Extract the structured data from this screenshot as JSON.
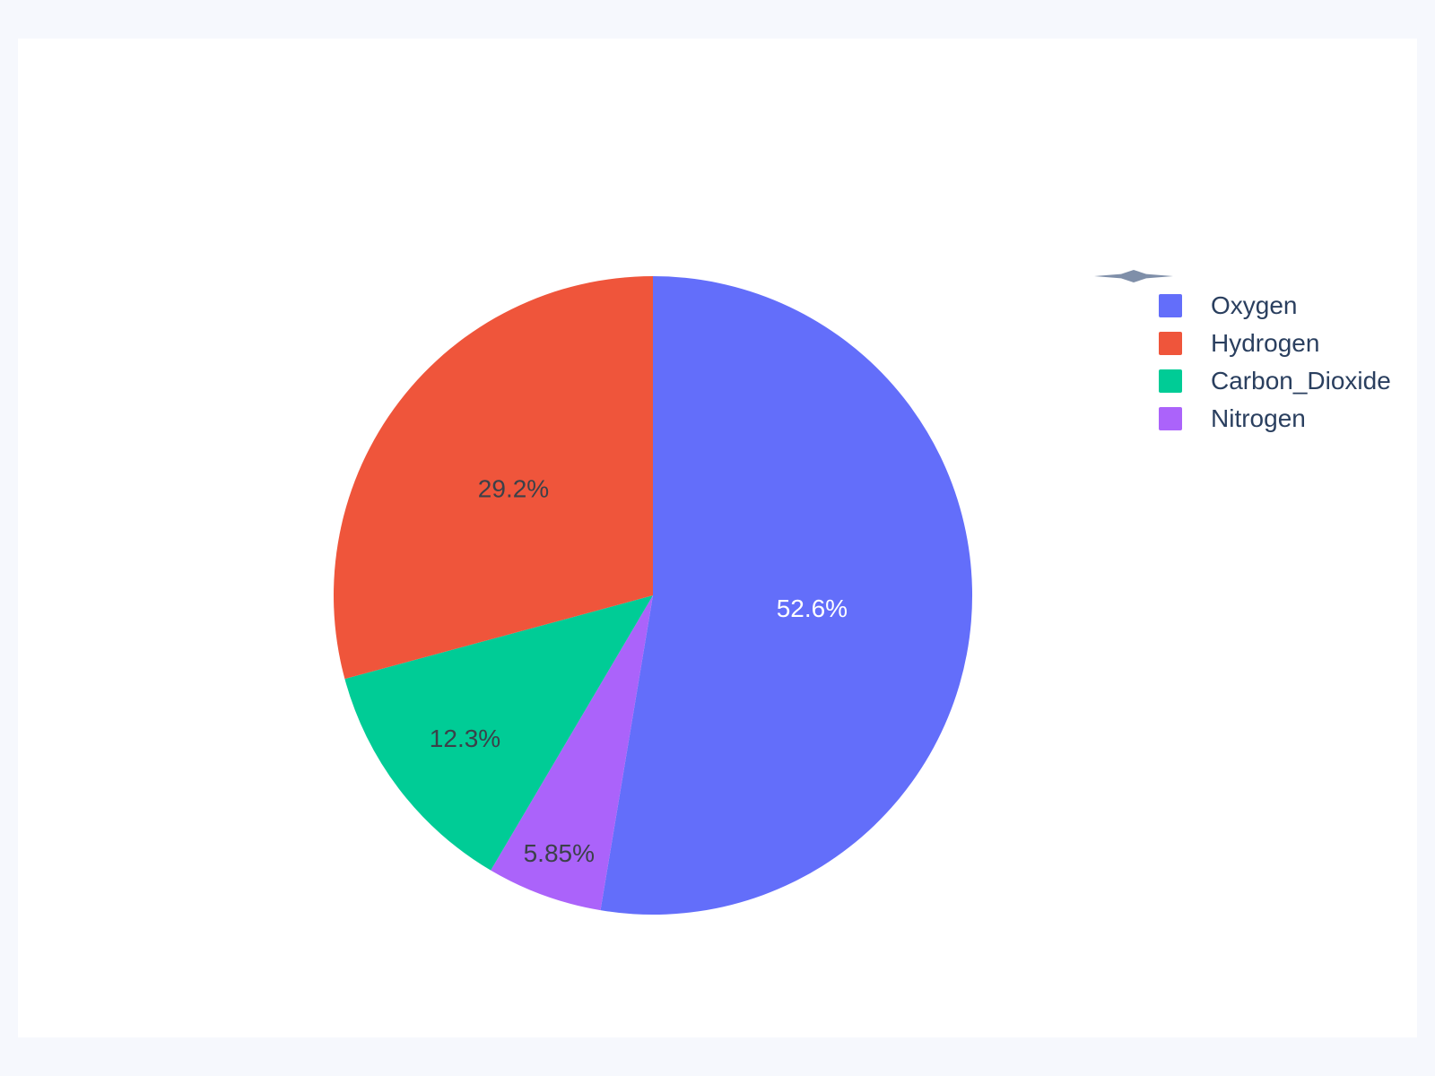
{
  "theme": {
    "outer_background": "#F6F8FD",
    "card_background": "#FFFFFF",
    "legend_text_color": "#2A3F5F",
    "decoration_color": "#7F8FA9"
  },
  "chart_data": {
    "type": "pie",
    "labels": [
      "Oxygen",
      "Hydrogen",
      "Carbon_Dioxide",
      "Nitrogen"
    ],
    "values": [
      52.6,
      29.2,
      12.3,
      5.85
    ],
    "slice_labels": [
      "52.6%",
      "29.2%",
      "12.3%",
      "5.85%"
    ],
    "colors": [
      "#636EFA",
      "#EF553B",
      "#00CC96",
      "#AB63FA"
    ],
    "slice_label_colors": [
      "#FFFFFF",
      "#3B4149",
      "#3B4149",
      "#3B4149"
    ],
    "title": "",
    "legend_position": "right",
    "start_angle": "top",
    "first_slice_direction": "clockwise"
  },
  "legend": {
    "items": [
      {
        "label": "Oxygen",
        "color": "#636EFA"
      },
      {
        "label": "Hydrogen",
        "color": "#EF553B"
      },
      {
        "label": "Carbon_Dioxide",
        "color": "#00CC96"
      },
      {
        "label": "Nitrogen",
        "color": "#AB63FA"
      }
    ]
  }
}
